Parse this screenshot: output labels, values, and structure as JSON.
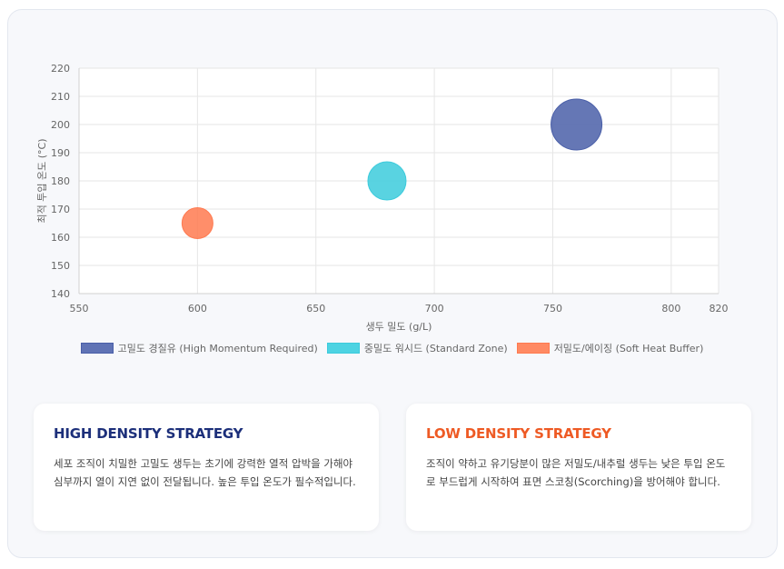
{
  "chart_data": {
    "type": "scatter",
    "xlabel": "생두 밀도 (g/L)",
    "ylabel": "최적 투입 온도 (°C)",
    "xlim": [
      550,
      820
    ],
    "ylim": [
      140,
      220
    ],
    "x_ticks": [
      "550",
      "600",
      "650",
      "700",
      "750",
      "800",
      "820"
    ],
    "y_ticks": [
      "140",
      "150",
      "160",
      "170",
      "180",
      "190",
      "200",
      "210",
      "220"
    ],
    "grid": true,
    "legend_position": "bottom",
    "series": [
      {
        "name": "고밀도 경질유 (High Momentum Required)",
        "color": "#4a5fa8",
        "x": 760,
        "y": 200,
        "r": 28
      },
      {
        "name": "중밀도 워시드 (Standard Zone)",
        "color": "#3ccbdc",
        "x": 680,
        "y": 180,
        "r": 21
      },
      {
        "name": "저밀도/에이징 (Soft Heat Buffer)",
        "color": "#ff7a50",
        "x": 600,
        "y": 165,
        "r": 17
      }
    ]
  },
  "cards": {
    "high": {
      "title": "HIGH DENSITY STRATEGY",
      "title_color": "#1c2f7a",
      "body": "세포 조직이 치밀한 고밀도 생두는 초기에 강력한 열적 압박을 가해야 심부까지 열이 지연 없이 전달됩니다. 높은 투입 온도가 필수적입니다."
    },
    "low": {
      "title": "LOW DENSITY STRATEGY",
      "title_color": "#ee5a24",
      "body": "조직이 약하고 유기당분이 많은 저밀도/내추럴 생두는 낮은 투입 온도로 부드럽게 시작하여 표면 스코칭(Scorching)을 방어해야 합니다."
    }
  }
}
